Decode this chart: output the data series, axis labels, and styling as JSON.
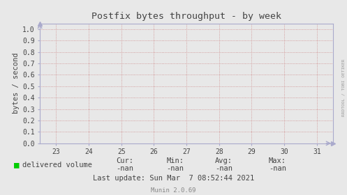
{
  "title": "Postfix bytes throughput - by week",
  "ylabel": "bytes / second",
  "xlim": [
    22.5,
    31.5
  ],
  "ylim": [
    0.0,
    1.05
  ],
  "xticks": [
    23,
    24,
    25,
    26,
    27,
    28,
    29,
    30,
    31
  ],
  "yticks": [
    0.0,
    0.1,
    0.2,
    0.3,
    0.4,
    0.5,
    0.6,
    0.7,
    0.8,
    0.9,
    1.0
  ],
  "bg_color": "#e8e8e8",
  "plot_bg_color": "#e8e8e8",
  "grid_color": "#cc8888",
  "legend_label": "delivered volume",
  "legend_color": "#00cc00",
  "cur_label": "Cur:",
  "cur_val": "-nan",
  "min_label": "Min:",
  "min_val": "-nan",
  "avg_label": "Avg:",
  "avg_val": "-nan",
  "max_label": "Max:",
  "max_val": "-nan",
  "last_update": "Last update: Sun Mar  7 08:52:44 2021",
  "munin_version": "Munin 2.0.69",
  "side_text": "RRDTOOL / TOBI OETIKER",
  "title_color": "#444444",
  "tick_color": "#444444",
  "font_color": "#444444",
  "spine_color": "#aaaacc",
  "arrow_color": "#aaaacc"
}
